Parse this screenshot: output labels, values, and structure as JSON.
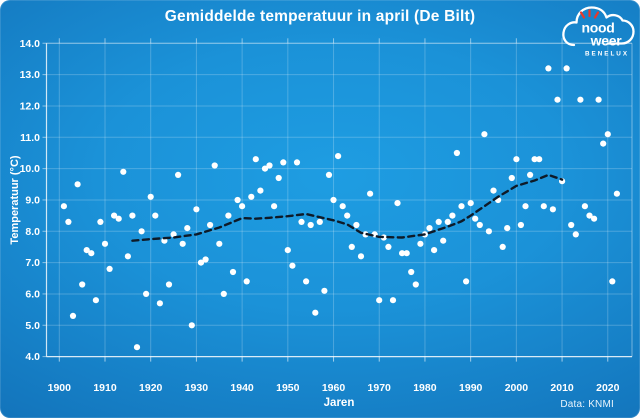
{
  "colors": {
    "bg_center": "#1e9de2",
    "bg_edge": "#0d5fa8",
    "dot": "#ffffff",
    "trend": "#0e1a28",
    "grid": "rgba(255,255,255,0.22)",
    "axis": "rgba(255,255,255,0.8)",
    "text": "#ffffff",
    "logo_spark": "#e8392b"
  },
  "logo": {
    "word1": "nood",
    "word2": "weer",
    "word3": "BENELUX"
  },
  "chart_data": {
    "type": "scatter",
    "title": "Gemiddelde temperatuur in april (De Bilt)",
    "xlabel": "Jaren",
    "ylabel": "Temperatuur (°C)",
    "source": "Data: KNMI",
    "grid": true,
    "legend": false,
    "xlim": [
      1897.2,
      2025.3
    ],
    "ylim": [
      4.0,
      14.0
    ],
    "x_ticks": [
      1900,
      1910,
      1920,
      1930,
      1940,
      1950,
      1960,
      1970,
      1980,
      1990,
      2000,
      2010,
      2020
    ],
    "y_ticks": [
      4.0,
      5.0,
      6.0,
      7.0,
      8.0,
      9.0,
      10.0,
      11.0,
      12.0,
      13.0,
      14.0
    ],
    "series": [
      {
        "name": "jaargemiddelde-april",
        "type": "scatter",
        "points": [
          [
            1901,
            8.8
          ],
          [
            1902,
            8.3
          ],
          [
            1903,
            5.3
          ],
          [
            1904,
            9.5
          ],
          [
            1905,
            6.3
          ],
          [
            1906,
            7.4
          ],
          [
            1907,
            7.3
          ],
          [
            1908,
            5.8
          ],
          [
            1909,
            8.3
          ],
          [
            1910,
            7.6
          ],
          [
            1911,
            6.8
          ],
          [
            1912,
            8.5
          ],
          [
            1913,
            8.4
          ],
          [
            1914,
            9.9
          ],
          [
            1915,
            7.2
          ],
          [
            1916,
            8.5
          ],
          [
            1917,
            4.3
          ],
          [
            1918,
            8.0
          ],
          [
            1919,
            6.0
          ],
          [
            1920,
            9.1
          ],
          [
            1921,
            8.5
          ],
          [
            1922,
            5.7
          ],
          [
            1923,
            7.7
          ],
          [
            1924,
            6.3
          ],
          [
            1925,
            7.9
          ],
          [
            1926,
            9.8
          ],
          [
            1927,
            7.6
          ],
          [
            1928,
            8.1
          ],
          [
            1929,
            5.0
          ],
          [
            1930,
            8.7
          ],
          [
            1931,
            7.0
          ],
          [
            1932,
            7.1
          ],
          [
            1933,
            8.2
          ],
          [
            1934,
            10.1
          ],
          [
            1935,
            7.6
          ],
          [
            1936,
            6.0
          ],
          [
            1937,
            8.5
          ],
          [
            1938,
            6.7
          ],
          [
            1939,
            9.0
          ],
          [
            1940,
            8.8
          ],
          [
            1941,
            6.4
          ],
          [
            1942,
            9.1
          ],
          [
            1943,
            10.3
          ],
          [
            1944,
            9.3
          ],
          [
            1945,
            10.0
          ],
          [
            1946,
            10.1
          ],
          [
            1947,
            8.8
          ],
          [
            1948,
            9.7
          ],
          [
            1949,
            10.2
          ],
          [
            1950,
            7.4
          ],
          [
            1951,
            6.9
          ],
          [
            1952,
            10.2
          ],
          [
            1953,
            8.3
          ],
          [
            1954,
            6.4
          ],
          [
            1955,
            8.2
          ],
          [
            1956,
            5.4
          ],
          [
            1957,
            8.3
          ],
          [
            1958,
            6.1
          ],
          [
            1959,
            9.8
          ],
          [
            1960,
            9.0
          ],
          [
            1961,
            10.4
          ],
          [
            1962,
            8.8
          ],
          [
            1963,
            8.5
          ],
          [
            1964,
            7.5
          ],
          [
            1965,
            8.2
          ],
          [
            1966,
            7.2
          ],
          [
            1967,
            7.9
          ],
          [
            1968,
            9.2
          ],
          [
            1969,
            7.9
          ],
          [
            1970,
            5.8
          ],
          [
            1971,
            7.8
          ],
          [
            1972,
            7.5
          ],
          [
            1973,
            5.8
          ],
          [
            1974,
            8.9
          ],
          [
            1975,
            7.3
          ],
          [
            1976,
            7.3
          ],
          [
            1977,
            6.7
          ],
          [
            1978,
            6.3
          ],
          [
            1979,
            7.6
          ],
          [
            1980,
            7.9
          ],
          [
            1981,
            8.1
          ],
          [
            1982,
            7.4
          ],
          [
            1983,
            8.3
          ],
          [
            1984,
            7.7
          ],
          [
            1985,
            8.3
          ],
          [
            1986,
            8.5
          ],
          [
            1987,
            10.5
          ],
          [
            1988,
            8.8
          ],
          [
            1989,
            6.4
          ],
          [
            1990,
            8.9
          ],
          [
            1991,
            8.4
          ],
          [
            1992,
            8.2
          ],
          [
            1993,
            11.1
          ],
          [
            1994,
            8.0
          ],
          [
            1995,
            9.3
          ],
          [
            1996,
            9.0
          ],
          [
            1997,
            7.5
          ],
          [
            1998,
            8.1
          ],
          [
            1999,
            9.7
          ],
          [
            2000,
            10.3
          ],
          [
            2001,
            8.2
          ],
          [
            2002,
            8.8
          ],
          [
            2003,
            9.8
          ],
          [
            2004,
            10.3
          ],
          [
            2005,
            10.3
          ],
          [
            2006,
            8.8
          ],
          [
            2007,
            13.2
          ],
          [
            2008,
            8.7
          ],
          [
            2009,
            12.2
          ],
          [
            2010,
            9.6
          ],
          [
            2011,
            13.2
          ],
          [
            2012,
            8.2
          ],
          [
            2013,
            7.9
          ],
          [
            2014,
            12.2
          ],
          [
            2015,
            8.8
          ],
          [
            2016,
            8.5
          ],
          [
            2017,
            8.4
          ],
          [
            2018,
            12.2
          ],
          [
            2019,
            10.8
          ],
          [
            2020,
            11.1
          ],
          [
            2021,
            6.4
          ],
          [
            2022,
            9.2
          ]
        ]
      },
      {
        "name": "voortschrijdend-gemiddelde",
        "type": "dashed_line",
        "points": [
          [
            1916,
            7.7
          ],
          [
            1920,
            7.75
          ],
          [
            1925,
            7.8
          ],
          [
            1930,
            7.9
          ],
          [
            1935,
            8.12
          ],
          [
            1938,
            8.3
          ],
          [
            1940,
            8.42
          ],
          [
            1943,
            8.4
          ],
          [
            1946,
            8.43
          ],
          [
            1950,
            8.48
          ],
          [
            1954,
            8.55
          ],
          [
            1957,
            8.45
          ],
          [
            1960,
            8.35
          ],
          [
            1963,
            8.22
          ],
          [
            1966,
            7.95
          ],
          [
            1970,
            7.82
          ],
          [
            1975,
            7.8
          ],
          [
            1980,
            7.9
          ],
          [
            1985,
            8.15
          ],
          [
            1988,
            8.32
          ],
          [
            1990,
            8.5
          ],
          [
            1993,
            8.8
          ],
          [
            1996,
            9.1
          ],
          [
            2000,
            9.45
          ],
          [
            2004,
            9.62
          ],
          [
            2007,
            9.8
          ],
          [
            2010,
            9.65
          ]
        ]
      }
    ]
  }
}
